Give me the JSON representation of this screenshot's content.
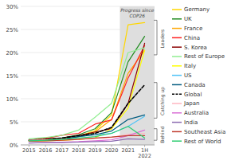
{
  "chart_data": {
    "type": "line",
    "categories": [
      "2015",
      "2016",
      "2017",
      "2018",
      "2019",
      "2020",
      "2021",
      "1H\n2022"
    ],
    "xlim": [
      -0.5,
      7.6
    ],
    "ylim": [
      0,
      30
    ],
    "yticks": [
      {
        "value": 0,
        "label": "0%"
      },
      {
        "value": 5,
        "label": "5%"
      },
      {
        "value": 10,
        "label": "10%"
      },
      {
        "value": 15,
        "label": "15%"
      },
      {
        "value": 20,
        "label": "20%"
      },
      {
        "value": 25,
        "label": "25%"
      },
      {
        "value": 30,
        "label": "30%"
      }
    ],
    "grid": true,
    "legend": "right",
    "shaded_region": {
      "start": 5.5,
      "label": "Progress since\nCOP26"
    },
    "brackets": [
      {
        "label": "Leaders",
        "top": 27.0,
        "bottom": 19.5,
        "center": 23.0
      },
      {
        "label": "Catching up",
        "top": 13.5,
        "bottom": 5.8,
        "center": 9.5
      },
      {
        "label": "Behind",
        "top": 3.5,
        "bottom": 1.0,
        "center": 2.2
      }
    ],
    "series": [
      {
        "name": "Germany",
        "color": "#FFD700",
        "line_style": "solid",
        "values": [
          0.9,
          1.0,
          1.3,
          1.9,
          3.1,
          6.5,
          26.0,
          26.5
        ]
      },
      {
        "name": "UK",
        "color": "#228B22",
        "line_style": "solid",
        "values": [
          1.1,
          1.3,
          1.5,
          2.2,
          3.5,
          7.0,
          18.0,
          23.5
        ]
      },
      {
        "name": "France",
        "color": "#FFA500",
        "line_style": "solid",
        "values": [
          1.0,
          1.1,
          1.3,
          1.8,
          2.8,
          5.5,
          15.5,
          20.5
        ]
      },
      {
        "name": "China",
        "color": "#FF2222",
        "line_style": "solid",
        "values": [
          1.0,
          1.4,
          2.1,
          2.5,
          4.5,
          5.4,
          14.5,
          21.5
        ]
      },
      {
        "name": "S. Korea",
        "color": "#8B0000",
        "line_style": "solid",
        "values": [
          1.0,
          1.2,
          1.4,
          2.0,
          2.8,
          3.5,
          9.0,
          22.0
        ]
      },
      {
        "name": "Rest of Europe",
        "color": "#90EE90",
        "line_style": "solid",
        "values": [
          1.3,
          1.6,
          2.1,
          3.2,
          6.0,
          9.0,
          20.0,
          21.0
        ]
      },
      {
        "name": "Italy",
        "color": "#FFFF00",
        "line_style": "solid",
        "values": [
          0.8,
          0.9,
          1.0,
          1.2,
          1.5,
          3.5,
          8.0,
          20.5
        ]
      },
      {
        "name": "US",
        "color": "#4FC3F7",
        "line_style": "solid",
        "values": [
          0.9,
          1.0,
          1.2,
          1.8,
          2.2,
          2.5,
          4.0,
          6.2
        ]
      },
      {
        "name": "Canada",
        "color": "#005B7F",
        "line_style": "solid",
        "values": [
          0.9,
          1.0,
          1.2,
          1.8,
          2.2,
          3.0,
          5.5,
          6.5
        ]
      },
      {
        "name": "Global",
        "color": "#000000",
        "line_style": "dashed",
        "values": [
          1.0,
          1.2,
          1.5,
          2.0,
          2.5,
          3.8,
          9.0,
          13.0
        ]
      },
      {
        "name": "Japan",
        "color": "#FFB6C1",
        "line_style": "solid",
        "values": [
          1.0,
          1.1,
          1.2,
          1.3,
          1.4,
          1.6,
          2.3,
          2.5
        ]
      },
      {
        "name": "Australia",
        "color": "#DA70D6",
        "line_style": "solid",
        "values": [
          0.4,
          0.5,
          0.6,
          0.7,
          0.9,
          1.1,
          2.0,
          3.2
        ]
      },
      {
        "name": "India",
        "color": "#8B6BB1",
        "line_style": "solid",
        "values": [
          0.4,
          0.5,
          0.5,
          0.6,
          0.7,
          0.8,
          1.3,
          1.2
        ]
      },
      {
        "name": "Southeast Asia",
        "color": "#C0392B",
        "line_style": "solid",
        "values": [
          0.8,
          0.9,
          1.0,
          1.2,
          1.5,
          1.7,
          2.0,
          2.0
        ]
      },
      {
        "name": "Rest of World",
        "color": "#2ECC71",
        "line_style": "solid",
        "values": [
          0.9,
          1.0,
          1.2,
          1.5,
          1.8,
          2.5,
          4.0,
          1.5
        ]
      }
    ]
  }
}
